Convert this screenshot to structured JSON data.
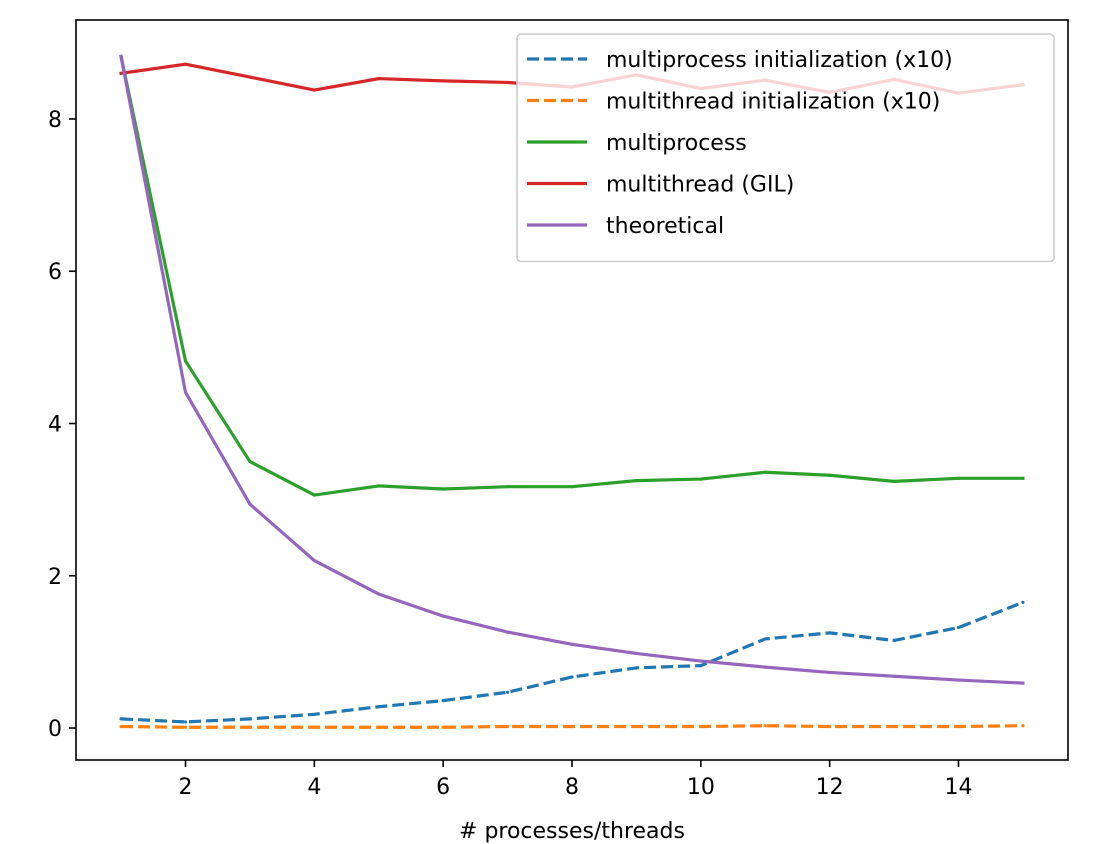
{
  "chart_data": {
    "type": "line",
    "title": "",
    "xlabel": "# processes/threads",
    "ylabel": "",
    "xlim": [
      0.3,
      15.7
    ],
    "ylim": [
      -0.42,
      9.3
    ],
    "xticks": [
      2,
      4,
      6,
      8,
      10,
      12,
      14
    ],
    "yticks": [
      0,
      2,
      4,
      6,
      8
    ],
    "grid": false,
    "legend_position": "top-right",
    "x": [
      1,
      2,
      3,
      4,
      5,
      6,
      7,
      8,
      9,
      10,
      11,
      12,
      13,
      14,
      15
    ],
    "series": [
      {
        "name": "multiprocess initialization (x10)",
        "color": "#1f77b4",
        "dashed": true,
        "values": [
          0.12,
          0.08,
          0.12,
          0.18,
          0.28,
          0.36,
          0.47,
          0.67,
          0.79,
          0.82,
          1.17,
          1.25,
          1.15,
          1.32,
          1.65
        ]
      },
      {
        "name": "multithread initialization (x10)",
        "color": "#ff7f0e",
        "dashed": true,
        "values": [
          0.02,
          0.01,
          0.01,
          0.01,
          0.01,
          0.01,
          0.02,
          0.02,
          0.02,
          0.02,
          0.03,
          0.02,
          0.02,
          0.02,
          0.03
        ]
      },
      {
        "name": "multiprocess",
        "color": "#2ca02c",
        "dashed": false,
        "values": [
          8.82,
          4.82,
          3.5,
          3.06,
          3.18,
          3.14,
          3.17,
          3.17,
          3.25,
          3.27,
          3.36,
          3.32,
          3.24,
          3.28,
          3.28
        ]
      },
      {
        "name": "multithread (GIL)",
        "color": "#d62728",
        "dashed": false,
        "values": [
          8.6,
          8.72,
          8.55,
          8.38,
          8.53,
          8.5,
          8.48,
          8.42,
          8.58,
          8.4,
          8.51,
          8.35,
          8.52,
          8.34,
          8.45
        ]
      },
      {
        "name": "theoretical",
        "color": "#9467bd",
        "dashed": false,
        "values": [
          8.82,
          4.41,
          2.94,
          2.2,
          1.76,
          1.47,
          1.26,
          1.1,
          0.98,
          0.88,
          0.8,
          0.73,
          0.68,
          0.63,
          0.59
        ]
      }
    ]
  }
}
